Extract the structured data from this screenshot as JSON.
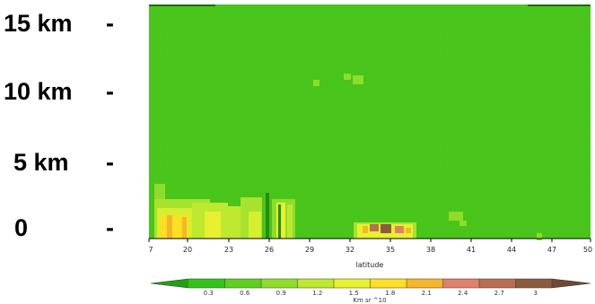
{
  "altitude_axis": {
    "labels": [
      {
        "text": "15 km",
        "dash": "-"
      },
      {
        "text": "10 km",
        "dash": "-"
      },
      {
        "text": "5 km",
        "dash": "-"
      },
      {
        "text": "0",
        "dash": "-"
      }
    ]
  },
  "chart_data": {
    "type": "heatmap",
    "title": "",
    "xlabel": "latitude",
    "ylabel": "",
    "x_ticks": [
      "7",
      "20",
      "23",
      "26",
      "29",
      "32",
      "35",
      "38",
      "41",
      "44",
      "47",
      "50"
    ],
    "y_ticks": [
      "0",
      "5 km",
      "10 km",
      "15 km"
    ],
    "ylim_km": [
      0,
      15
    ],
    "colorbar": {
      "label": "Km sr ^10",
      "ticks": [
        "0.3",
        "0.6",
        "0.9",
        "1.2",
        "1.5",
        "1.8",
        "2.1",
        "2.4",
        "2.7",
        "3"
      ],
      "colors": [
        "#34c11a",
        "#5fcf1e",
        "#8fdc2a",
        "#bfe830",
        "#e8f030",
        "#fde023",
        "#f6b52a",
        "#e0806a",
        "#b96e54",
        "#8c5a40"
      ]
    },
    "background_value": "0.3",
    "background_color": "#48c41a",
    "features": [
      {
        "lat": [
          20,
          29
        ],
        "alt_km": [
          0,
          1.3
        ],
        "max_value": "1.8",
        "description": "low-level enhanced backscatter"
      },
      {
        "lat": [
          33,
          36
        ],
        "alt_km": [
          0,
          0.6
        ],
        "max_value": "3",
        "description": "high values near surface"
      },
      {
        "lat": [
          34,
          35
        ],
        "alt_km": [
          10.3,
          10.8
        ],
        "max_value": "0.6"
      },
      {
        "lat": [
          30,
          31
        ],
        "alt_km": [
          9.6,
          10.2
        ],
        "max_value": "0.6"
      }
    ]
  }
}
